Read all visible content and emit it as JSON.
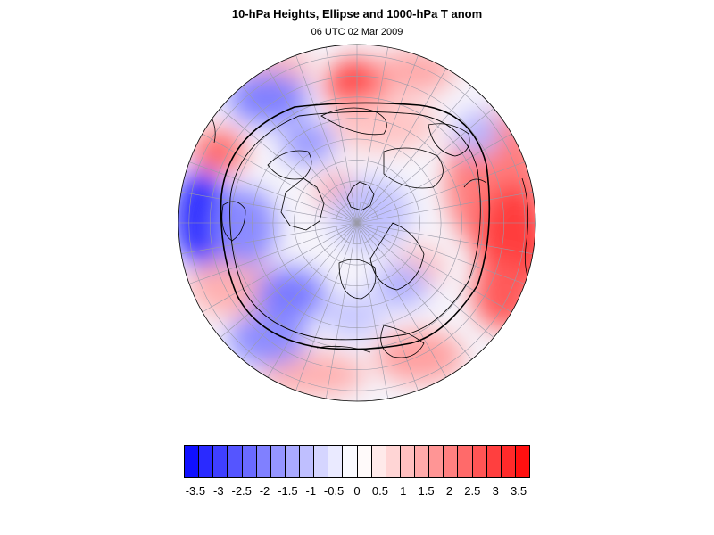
{
  "title": "10-hPa Heights, Ellipse and 1000-hPa T anom",
  "subtitle": "06 UTC 02 Mar 2009",
  "map": {
    "projection": "orthographic-north-polar",
    "field": "1000-hPa T anom",
    "contour": "10-hPa ellipse"
  },
  "colorbar": {
    "min": -3.75,
    "max": 3.75,
    "step": 0.25,
    "colors": [
      "#1010ff",
      "#2a2aff",
      "#3f3fff",
      "#5555ff",
      "#6a6aff",
      "#8080ff",
      "#9595ff",
      "#aaaaff",
      "#bfbfff",
      "#d5d5ff",
      "#eaeaff",
      "#fafaff",
      "#fffafa",
      "#ffeaea",
      "#ffd5d5",
      "#ffbfbf",
      "#ffaaaa",
      "#ff9595",
      "#ff8080",
      "#ff6a6a",
      "#ff5555",
      "#ff3f3f",
      "#ff2a2a",
      "#ff1010"
    ],
    "tick_labels": [
      "-3.5",
      "-3",
      "-2.5",
      "-2",
      "-1.5",
      "-1",
      "-0.5",
      "0",
      "0.5",
      "1",
      "1.5",
      "2",
      "2.5",
      "3",
      "3.5"
    ]
  }
}
